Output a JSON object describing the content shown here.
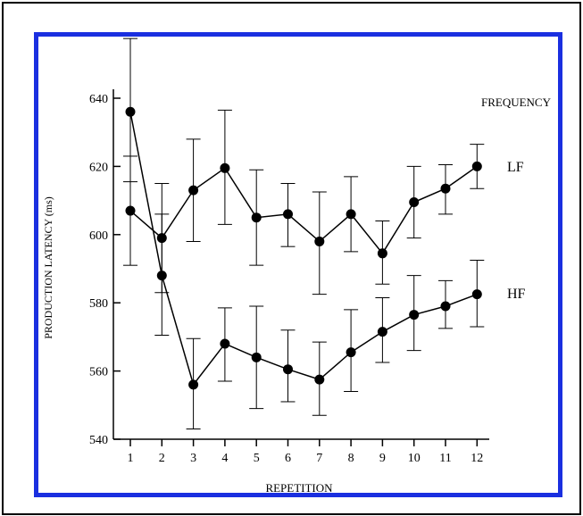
{
  "chart_data": {
    "type": "line",
    "xlabel": "REPETITION",
    "ylabel": "PRODUCTION LATENCY (ms)",
    "categories": [
      "1",
      "2",
      "3",
      "4",
      "5",
      "6",
      "7",
      "8",
      "9",
      "10",
      "11",
      "12"
    ],
    "ylim": [
      540,
      645
    ],
    "yticks": [
      "540",
      "560",
      "580",
      "600",
      "620",
      "640"
    ],
    "legend_title": "FREQUENCY",
    "grid": false,
    "series": [
      {
        "name": "LF",
        "values": [
          607,
          599,
          613,
          619.5,
          605,
          606,
          598,
          606,
          594.5,
          609.5,
          613.5,
          620
        ],
        "err_low": [
          591,
          583,
          598,
          603,
          591,
          596.5,
          582.5,
          595,
          585.5,
          599,
          606,
          613.5
        ],
        "err_high": [
          623,
          615,
          628,
          636.5,
          619,
          615,
          612.5,
          617,
          604,
          620,
          620.5,
          626.5
        ]
      },
      {
        "name": "HF",
        "values": [
          636,
          588,
          556,
          568,
          564,
          560.5,
          557.5,
          565.5,
          571.5,
          576.5,
          579,
          582.5
        ],
        "err_low": [
          615.5,
          570.5,
          543,
          557,
          549,
          551,
          547,
          554,
          562.5,
          566,
          572.5,
          573
        ],
        "err_high": [
          657.5,
          606,
          569.5,
          578.5,
          579,
          572,
          568.5,
          578,
          581.5,
          588,
          586.5,
          592.5
        ]
      }
    ]
  }
}
